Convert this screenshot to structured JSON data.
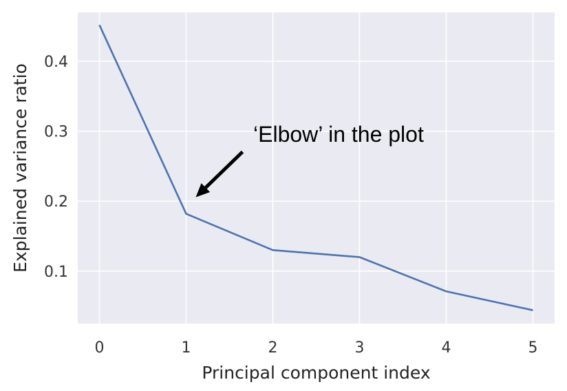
{
  "chart_data": {
    "type": "line",
    "title": "",
    "xlabel": "Principal component index",
    "ylabel": "Explained variance ratio",
    "x": [
      0,
      1,
      2,
      3,
      4,
      5
    ],
    "series": [
      {
        "values": [
          0.452,
          0.182,
          0.13,
          0.12,
          0.071,
          0.044
        ],
        "color": "#4c72b0"
      }
    ],
    "xlim": [
      -0.25,
      5.25
    ],
    "ylim": [
      0.025,
      0.47
    ],
    "xticks": [
      "0",
      "1",
      "2",
      "3",
      "4",
      "5"
    ],
    "yticks": [
      "0.1",
      "0.2",
      "0.3",
      "0.4"
    ],
    "grid": true,
    "background": "#eaeaf2",
    "annotation": {
      "text": "‘Elbow’ in the plot",
      "target": {
        "x": 1,
        "y": 0.182
      }
    }
  }
}
